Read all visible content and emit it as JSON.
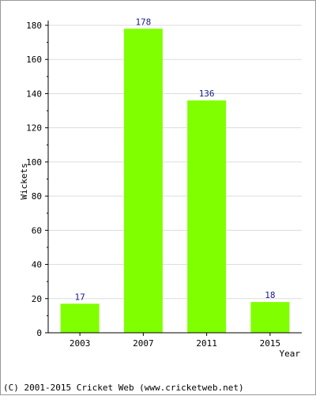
{
  "chart_data": {
    "type": "bar",
    "categories": [
      "2003",
      "2007",
      "2011",
      "2015"
    ],
    "values": [
      17,
      178,
      136,
      18
    ],
    "data_labels": [
      "17",
      "178",
      "136",
      "18"
    ],
    "title": "",
    "xlabel": "Year",
    "ylabel": "Wickets",
    "ylim": [
      0,
      180
    ],
    "yticks": [
      0,
      20,
      40,
      60,
      80,
      100,
      120,
      140,
      160,
      180
    ],
    "grid": true,
    "legend": "none",
    "colors": {
      "bar": "#80ff00",
      "data_label": "#1a1a8c",
      "grid": "#dddddd",
      "axis": "#000000"
    }
  },
  "footer": {
    "text": "(C) 2001-2015 Cricket Web (www.cricketweb.net)"
  }
}
